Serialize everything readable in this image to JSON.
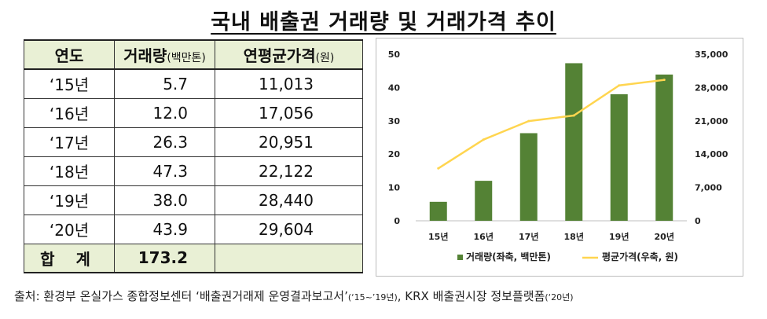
{
  "title": "국내 배출권 거래량 및 거래가격 추이",
  "table": {
    "headers": {
      "year": "연도",
      "volume": "거래량",
      "volume_unit": "(백만톤)",
      "price": "연평균가격",
      "price_unit": "(원)"
    },
    "rows": [
      {
        "year": "‘15년",
        "volume": "5.7",
        "price": "11,013"
      },
      {
        "year": "‘16년",
        "volume": "12.0",
        "price": "17,056"
      },
      {
        "year": "‘17년",
        "volume": "26.3",
        "price": "20,951"
      },
      {
        "year": "‘18년",
        "volume": "47.3",
        "price": "22,122"
      },
      {
        "year": "‘19년",
        "volume": "38.0",
        "price": "28,440"
      },
      {
        "year": "‘20년",
        "volume": "43.9",
        "price": "29,604"
      }
    ],
    "total": {
      "label": "합 계",
      "volume": "173.2"
    }
  },
  "chart_data": {
    "type": "bar",
    "categories": [
      "15년",
      "16년",
      "17년",
      "18년",
      "19년",
      "20년"
    ],
    "series": [
      {
        "name": "거래량(좌축, 백만톤)",
        "type": "bar",
        "axis": "left",
        "color": "#548235",
        "values": [
          5.7,
          12.0,
          26.3,
          47.3,
          38.0,
          43.9
        ]
      },
      {
        "name": "평균가격(우축, 원)",
        "type": "line",
        "axis": "right",
        "color": "#ffd54f",
        "values": [
          11013,
          17056,
          20951,
          22122,
          28440,
          29604
        ]
      }
    ],
    "y_left": {
      "min": 0,
      "max": 50,
      "ticks": [
        "0",
        "10",
        "20",
        "30",
        "40",
        "50"
      ],
      "tick_values": [
        0,
        10,
        20,
        30,
        40,
        50
      ]
    },
    "y_right": {
      "min": 0,
      "max": 35000,
      "ticks": [
        "0",
        "7,000",
        "14,000",
        "21,000",
        "28,000",
        "35,000"
      ],
      "tick_values": [
        0,
        7000,
        14000,
        21000,
        28000,
        35000
      ]
    },
    "grid": false,
    "legend_position": "bottom"
  },
  "source": {
    "main": "출처: 환경부 온실가스 종합정보센터 ‘배출권거래제 운영결과보고서’",
    "note1": "(‘15~’19년)",
    "mid": ", KRX 배출권시장 정보플랫폼",
    "note2": "(‘20년)"
  }
}
